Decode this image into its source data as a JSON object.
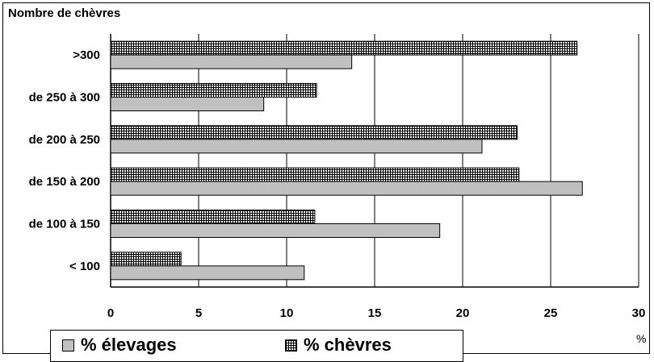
{
  "chart_data": {
    "type": "bar",
    "orientation": "horizontal",
    "ylabel": "Nombre de chèvres",
    "xlabel": "%",
    "categories": [
      "< 100",
      "de 100 à 150",
      "de 150 à 200",
      "de 200 à 250",
      "de 250 à 300",
      ">300"
    ],
    "series": [
      {
        "name": "% élevages",
        "values": [
          11.0,
          18.7,
          26.8,
          21.1,
          8.7,
          13.7
        ]
      },
      {
        "name": "% chèvres",
        "values": [
          4.0,
          11.6,
          23.2,
          23.1,
          11.7,
          26.5
        ]
      }
    ],
    "xlim": [
      0,
      30
    ],
    "xticks": [
      0,
      5,
      10,
      15,
      20,
      25,
      30
    ],
    "grid": "vertical",
    "legend_position": "bottom",
    "colors": {
      "elevages": "#c0c0c0",
      "chevres_pattern": "#000000",
      "grid": "#000000"
    }
  }
}
